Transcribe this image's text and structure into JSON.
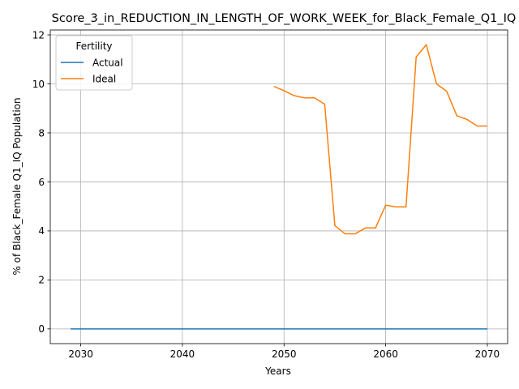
{
  "chart_data": {
    "type": "line",
    "title": "Score_3_in_REDUCTION_IN_LENGTH_OF_WORK_WEEK_for_Black_Female_Q1_IQ",
    "xlabel": "Years",
    "ylabel": "% of Black_Female Q1_IQ Population",
    "xlim": [
      2027,
      2072
    ],
    "ylim": [
      -0.6,
      12.2
    ],
    "xticks": [
      2030,
      2040,
      2050,
      2060,
      2070
    ],
    "yticks": [
      0,
      2,
      4,
      6,
      8,
      10,
      12
    ],
    "grid": true,
    "legend": {
      "title": "Fertility",
      "placement": "upper-left"
    },
    "series": [
      {
        "name": "Actual",
        "color": "#1f77b4",
        "x": [
          2029,
          2030,
          2031,
          2032,
          2033,
          2034,
          2035,
          2036,
          2037,
          2038,
          2039,
          2040,
          2041,
          2042,
          2043,
          2044,
          2045,
          2046,
          2047,
          2048,
          2049,
          2050,
          2051,
          2052,
          2053,
          2054,
          2055,
          2056,
          2057,
          2058,
          2059,
          2060,
          2061,
          2062,
          2063,
          2064,
          2065,
          2066,
          2067,
          2068,
          2069,
          2070
        ],
        "y": [
          0,
          0,
          0,
          0,
          0,
          0,
          0,
          0,
          0,
          0,
          0,
          0,
          0,
          0,
          0,
          0,
          0,
          0,
          0,
          0,
          0,
          0,
          0,
          0,
          0,
          0,
          0,
          0,
          0,
          0,
          0,
          0,
          0,
          0,
          0,
          0,
          0,
          0,
          0,
          0,
          0,
          0
        ]
      },
      {
        "name": "Ideal",
        "color": "#ff7f0e",
        "x": [
          2049,
          2050,
          2051,
          2052,
          2053,
          2054,
          2055,
          2056,
          2057,
          2058,
          2059,
          2060,
          2061,
          2062,
          2063,
          2064,
          2065,
          2066,
          2067,
          2068,
          2069,
          2070
        ],
        "y": [
          9.9,
          9.72,
          9.52,
          9.43,
          9.43,
          9.17,
          4.22,
          3.88,
          3.88,
          4.12,
          4.12,
          5.05,
          4.98,
          4.98,
          11.1,
          11.6,
          10.0,
          9.7,
          8.7,
          8.55,
          8.28,
          8.28
        ]
      }
    ]
  }
}
